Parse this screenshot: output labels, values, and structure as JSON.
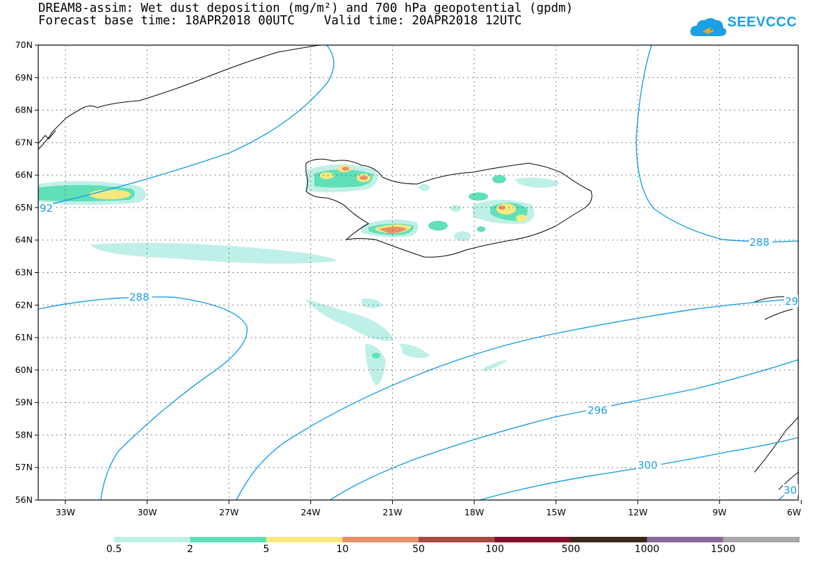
{
  "header": {
    "title_line1": "DREAM8-assim: Wet dust deposition (mg/m²) and 700 hPa geopotential (gpdm)",
    "forecast_base_label": "Forecast base time: 18APR2018 00UTC",
    "valid_time_label": "Valid time: 20APR2018 12UTC"
  },
  "logo": {
    "text": "SEEVCCC",
    "icon": "cloud-icon",
    "color": "#1aa0e6"
  },
  "map": {
    "lon_ticks": [
      "33W",
      "30W",
      "27W",
      "24W",
      "21W",
      "18W",
      "15W",
      "12W",
      "9W",
      "6W"
    ],
    "lat_ticks": [
      "70N",
      "69N",
      "68N",
      "67N",
      "66N",
      "65N",
      "64N",
      "63N",
      "62N",
      "61N",
      "60N",
      "59N",
      "58N",
      "57N",
      "56N"
    ],
    "contour_labels": [
      "92",
      "288",
      "288",
      "296",
      "300",
      "29",
      "30"
    ],
    "contour_color": "#1aa0e6"
  },
  "legend": {
    "labels": [
      "0.5",
      "2",
      "5",
      "10",
      "50",
      "100",
      "500",
      "1000",
      "1500"
    ],
    "colors": [
      "#bff0e8",
      "#5fe0b8",
      "#f8e880",
      "#e8906a",
      "#a84a40",
      "#80102a",
      "#3a2a1a",
      "#8a6a9a",
      "#a8a8a8"
    ]
  }
}
